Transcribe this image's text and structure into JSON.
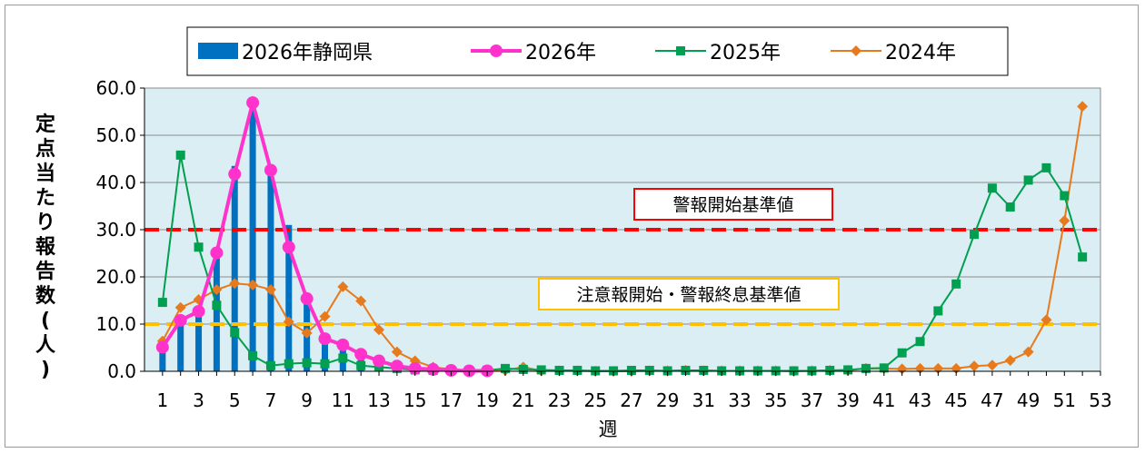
{
  "chart_data": {
    "type": "bar+line",
    "ylabel": "定点当たり報告数(人)",
    "ylabel_chars": [
      "定",
      "点",
      "当",
      "た",
      "り",
      "報",
      "告",
      "数",
      "(",
      "人",
      ")"
    ],
    "xlabel": "週",
    "ylim": [
      0,
      60
    ],
    "xlim": [
      0,
      53
    ],
    "y_ticks": [
      "0.0",
      "10.0",
      "20.0",
      "30.0",
      "40.0",
      "50.0",
      "60.0"
    ],
    "y_tick_values": [
      0,
      10,
      20,
      30,
      40,
      50,
      60
    ],
    "x_ticks": [
      1,
      3,
      5,
      7,
      9,
      11,
      13,
      15,
      17,
      19,
      21,
      23,
      25,
      27,
      29,
      31,
      33,
      35,
      37,
      39,
      41,
      43,
      45,
      47,
      49,
      51,
      53
    ],
    "grid": true,
    "legend_position": "top",
    "plot_background": "#daeef3",
    "bar_series": {
      "name": "2026年静岡県",
      "color": "#0070c0",
      "x": [
        1,
        2,
        3,
        4,
        5,
        6,
        7,
        8,
        9,
        10,
        11,
        12,
        13,
        14,
        15,
        16,
        17,
        18,
        19
      ],
      "values": [
        5.0,
        10.5,
        12.5,
        24.5,
        43.5,
        55.5,
        42.5,
        31.0,
        15.0,
        7.0,
        5.5,
        3.5,
        2.0,
        1.0,
        0.6,
        0.4,
        0.3,
        0.2,
        0.1
      ]
    },
    "series": [
      {
        "name": "2026年",
        "color": "#ff33cc",
        "marker": "circle",
        "x": [
          1,
          2,
          3,
          4,
          5,
          6,
          7,
          8,
          9,
          10,
          11,
          12,
          13,
          14,
          15,
          16,
          17,
          18,
          19
        ],
        "values": [
          5.1,
          10.8,
          12.7,
          25.1,
          41.8,
          56.9,
          42.6,
          26.3,
          15.4,
          6.9,
          5.6,
          3.6,
          2.2,
          1.1,
          0.6,
          0.4,
          0.2,
          0.1,
          0.1
        ]
      },
      {
        "name": "2025年",
        "color": "#00a050",
        "marker": "square",
        "x": [
          1,
          2,
          3,
          4,
          5,
          6,
          7,
          8,
          9,
          10,
          11,
          12,
          13,
          14,
          15,
          16,
          17,
          18,
          19,
          20,
          21,
          22,
          23,
          24,
          25,
          26,
          27,
          28,
          29,
          30,
          31,
          32,
          33,
          34,
          35,
          36,
          37,
          38,
          39,
          40,
          41,
          42,
          43,
          44,
          45,
          46,
          47,
          48,
          49,
          50,
          51,
          52
        ],
        "values": [
          14.6,
          45.8,
          26.3,
          14.0,
          8.2,
          3.3,
          1.2,
          1.6,
          1.8,
          1.6,
          2.8,
          1.2,
          0.9,
          0.6,
          0.3,
          0.2,
          0.2,
          0.1,
          0.2,
          0.6,
          0.4,
          0.3,
          0.2,
          0.2,
          0.1,
          0.1,
          0.2,
          0.2,
          0.1,
          0.2,
          0.2,
          0.1,
          0.1,
          0.1,
          0.1,
          0.1,
          0.1,
          0.2,
          0.3,
          0.6,
          0.7,
          3.9,
          6.3,
          12.8,
          18.5,
          29.0,
          38.8,
          34.8,
          40.5,
          43.1,
          37.2,
          24.2
        ]
      },
      {
        "name": "2024年",
        "color": "#e87a1e",
        "marker": "diamond",
        "x": [
          1,
          2,
          3,
          4,
          5,
          6,
          7,
          8,
          9,
          10,
          11,
          12,
          13,
          14,
          15,
          16,
          17,
          18,
          19,
          20,
          21,
          22,
          23,
          24,
          25,
          26,
          27,
          28,
          29,
          30,
          31,
          32,
          33,
          34,
          35,
          36,
          37,
          38,
          39,
          40,
          41,
          42,
          43,
          44,
          45,
          46,
          47,
          48,
          49,
          50,
          51,
          52
        ],
        "values": [
          6.4,
          13.5,
          15.2,
          17.3,
          18.6,
          18.3,
          17.3,
          10.5,
          8.1,
          11.6,
          17.9,
          14.9,
          8.8,
          4.1,
          2.2,
          0.9,
          0.4,
          0.2,
          0.1,
          0.2,
          0.9,
          0.1,
          0.1,
          0.1,
          0.0,
          0.0,
          0.0,
          0.1,
          0.1,
          0.2,
          0.1,
          0.1,
          0.1,
          0.1,
          0.1,
          0.0,
          0.1,
          0.2,
          0.2,
          0.6,
          0.6,
          0.5,
          0.6,
          0.6,
          0.6,
          1.1,
          1.3,
          2.3,
          4.1,
          10.9,
          31.9,
          56.1
        ]
      }
    ],
    "reference_lines": [
      {
        "label": "警報開始基準値",
        "value": 30,
        "color": "#ff0000",
        "box_border": "#ff0000"
      },
      {
        "label": "注意報開始・警報終息基準値",
        "value": 10,
        "color": "#ffc000",
        "box_border": "#ffc000"
      }
    ]
  }
}
